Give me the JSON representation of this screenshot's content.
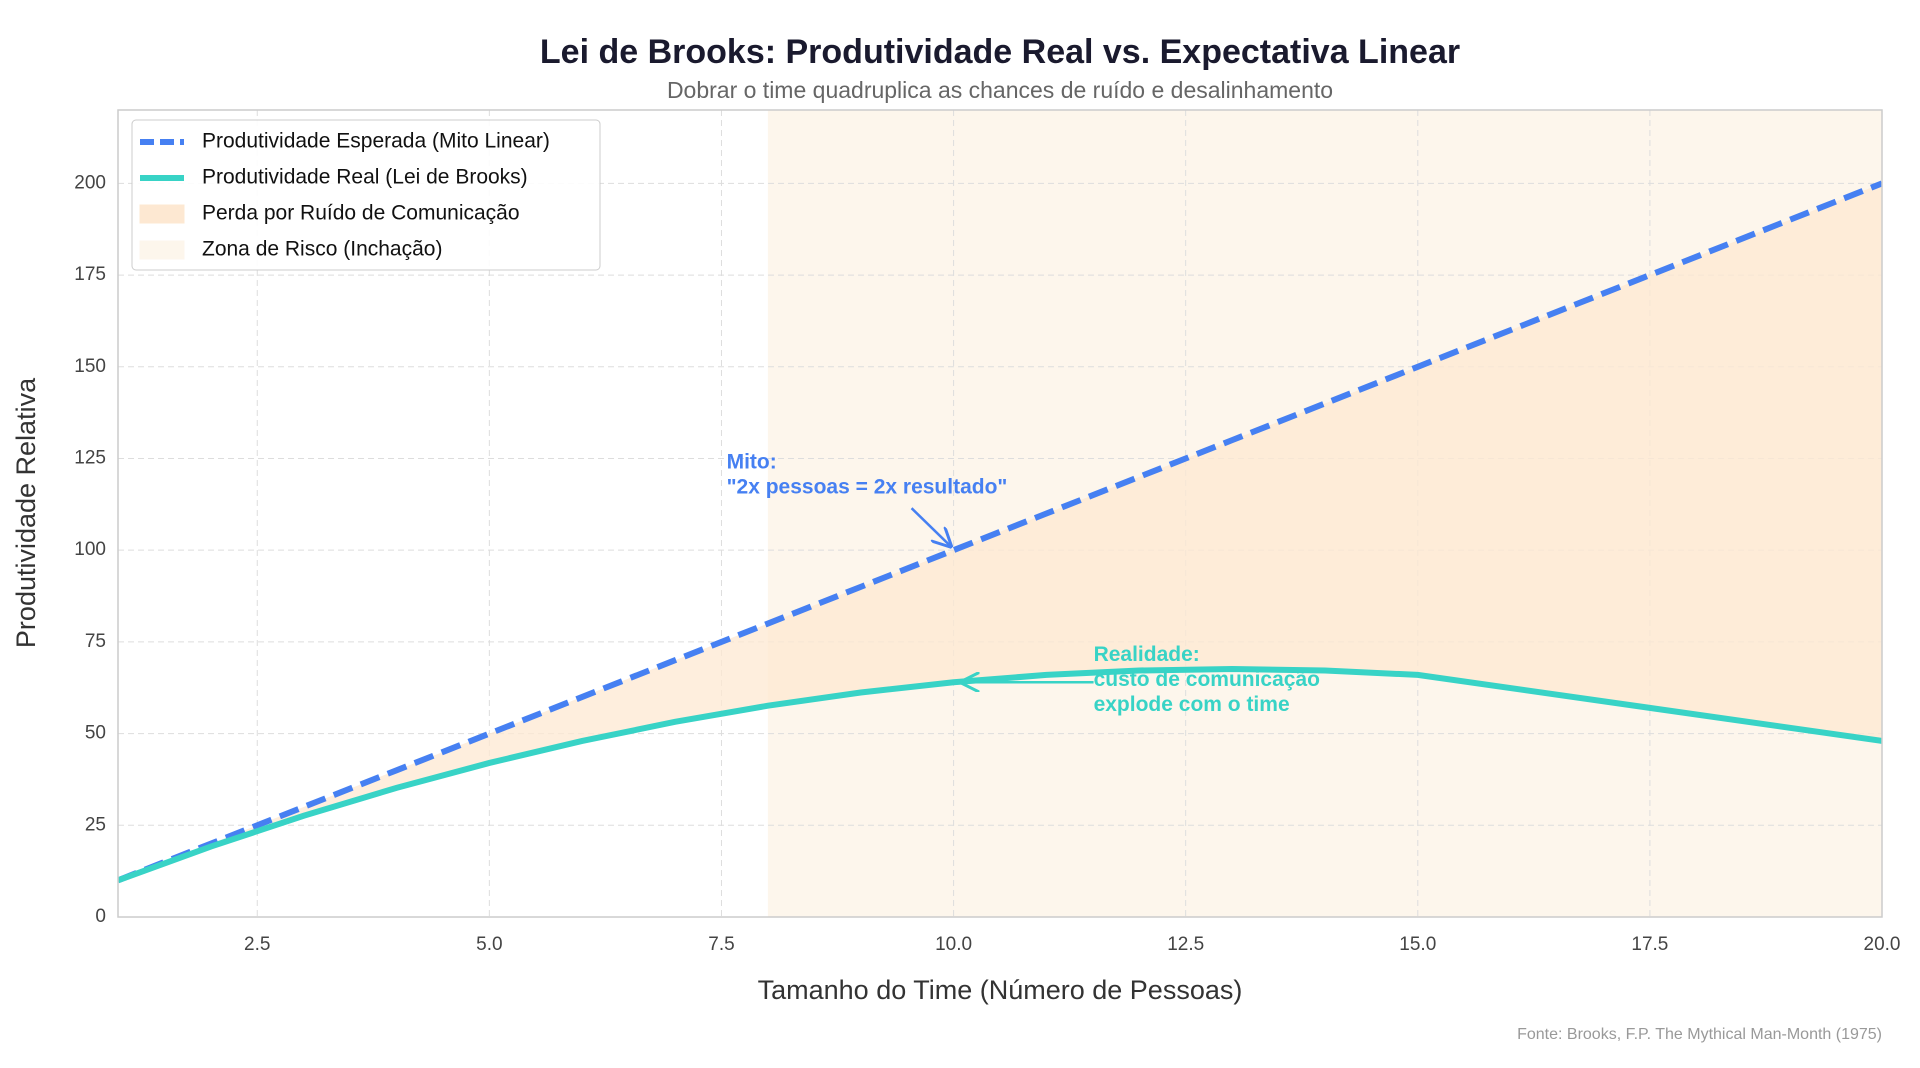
{
  "chart_data": {
    "type": "line",
    "title": "Lei de Brooks: Produtividade Real vs. Expectativa Linear",
    "subtitle": "Dobrar o time quadruplica as chances de ruído e desalinhamento",
    "x_label": "Tamanho do Time (Número de Pessoas)",
    "y_label": "Produtividade Relativa",
    "source": "Fonte: Brooks, F.P. The Mythical Man-Month (1975)",
    "x": [
      1,
      2,
      3,
      4,
      5,
      6,
      7,
      8,
      9,
      10,
      11,
      12,
      13,
      14,
      15,
      20
    ],
    "series": [
      {
        "name": "Produtividade Esperada (Mito Linear)",
        "color": "#4680f2",
        "dashed": true,
        "values": [
          10,
          20,
          30,
          40,
          50,
          60,
          70,
          80,
          90,
          100,
          110,
          120,
          130,
          140,
          150,
          200
        ]
      },
      {
        "name": "Produtividade Real (Lei de Brooks)",
        "color": "#38d3c6",
        "dashed": false,
        "values": [
          10,
          19.2,
          27.6,
          35.2,
          42,
          48,
          53.2,
          57.6,
          61.2,
          64,
          66,
          67.2,
          67.6,
          67.2,
          66,
          48
        ]
      }
    ],
    "fill_between": {
      "name": "Perda por Ruído de Comunicação",
      "color": "#fde8d2"
    },
    "risk_zone": {
      "name": "Zona de Risco (Inchação)",
      "start": 8,
      "color": "#fdf6ec"
    },
    "annotations": [
      {
        "lines": [
          "Mito:",
          "\"2x pessoas = 2x resultado\""
        ],
        "color": "#4680f2"
      },
      {
        "lines": [
          "Realidade:",
          "custo de comunicação",
          "explode com o time"
        ],
        "color": "#38d3c6"
      }
    ],
    "xlim": [
      1,
      20
    ],
    "ylim": [
      0,
      220
    ],
    "xticks": [
      2.5,
      {
        "value": 5,
        "label": "5.0"
      },
      7.5,
      {
        "value": 10,
        "label": "10.0"
      },
      12.5,
      {
        "value": 15,
        "label": "15.0"
      },
      17.5,
      {
        "value": 20,
        "label": "20.0"
      }
    ],
    "yticks": [
      0,
      25,
      50,
      75,
      100,
      125,
      150,
      175,
      200
    ],
    "grid": true,
    "legend": "upper left"
  }
}
